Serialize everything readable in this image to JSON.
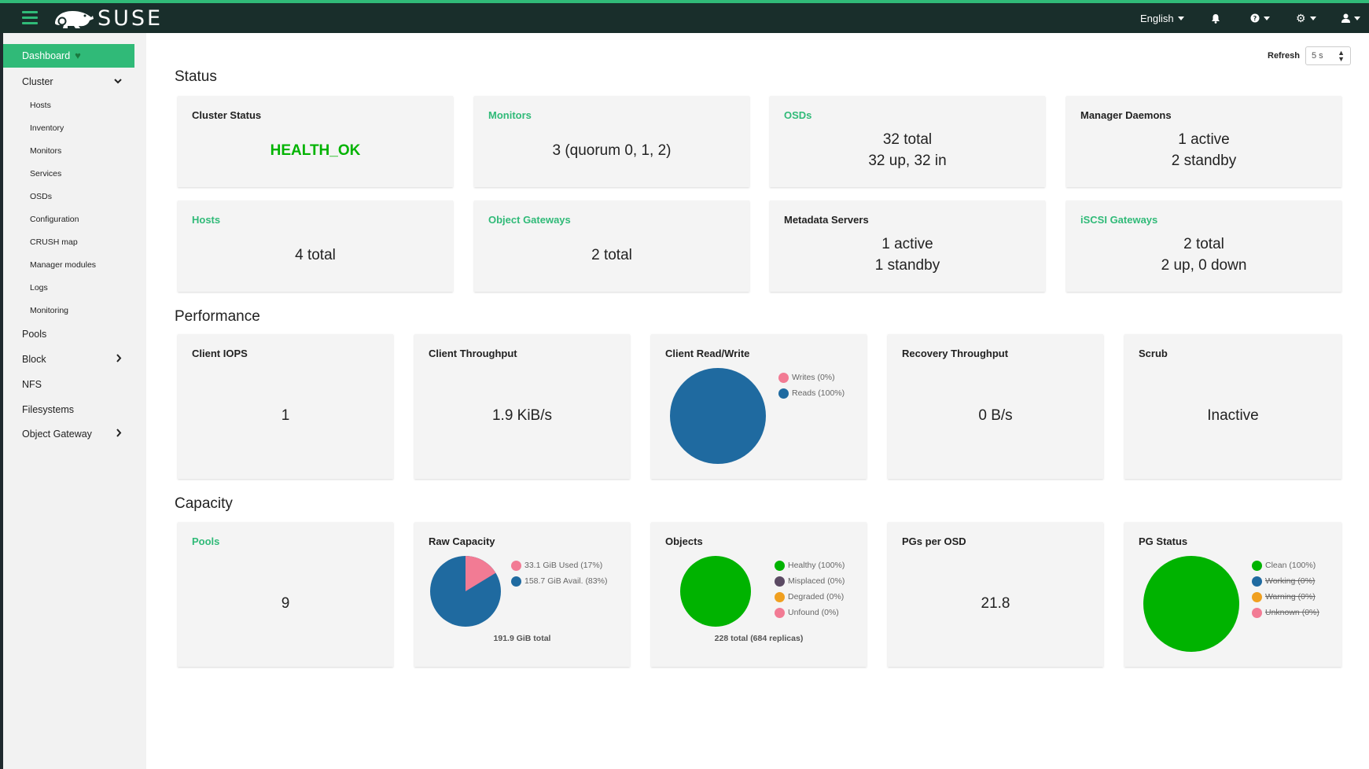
{
  "topbar": {
    "brand": "SUSE",
    "language": "English",
    "icons": [
      "menu-icon",
      "bell-icon",
      "help-icon",
      "gear-icon",
      "user-icon"
    ],
    "accent": "#30ba78",
    "background": "#192e2b"
  },
  "sidebar": {
    "dashboard": "Dashboard",
    "cluster": "Cluster",
    "cluster_items": [
      "Hosts",
      "Inventory",
      "Monitors",
      "Services",
      "OSDs",
      "Configuration",
      "CRUSH map",
      "Manager modules",
      "Logs",
      "Monitoring"
    ],
    "pools": "Pools",
    "block": "Block",
    "nfs": "NFS",
    "filesystems": "Filesystems",
    "object_gateway": "Object Gateway"
  },
  "refresh": {
    "label": "Refresh",
    "value": "5 s"
  },
  "sections": {
    "status": "Status",
    "performance": "Performance",
    "capacity": "Capacity"
  },
  "status": {
    "cluster_status": {
      "title": "Cluster Status",
      "value": "HEALTH_OK"
    },
    "monitors": {
      "title": "Monitors",
      "value": "3 (quorum 0, 1, 2)"
    },
    "osds": {
      "title": "OSDs",
      "line1": "32 total",
      "line2": "32 up, 32 in"
    },
    "manager_daemons": {
      "title": "Manager Daemons",
      "line1": "1 active",
      "line2": "2 standby"
    },
    "hosts": {
      "title": "Hosts",
      "value": "4 total"
    },
    "object_gateways": {
      "title": "Object Gateways",
      "value": "2 total"
    },
    "metadata_servers": {
      "title": "Metadata Servers",
      "line1": "1 active",
      "line2": "1 standby"
    },
    "iscsi_gateways": {
      "title": "iSCSI Gateways",
      "line1": "2 total",
      "line2": "2 up, 0 down"
    }
  },
  "performance": {
    "client_iops": {
      "title": "Client IOPS",
      "value": "1"
    },
    "client_throughput": {
      "title": "Client Throughput",
      "value": "1.9 KiB/s"
    },
    "client_read_write": {
      "title": "Client Read/Write",
      "legend": [
        "Writes (0%)",
        "Reads (100%)"
      ]
    },
    "recovery_throughput": {
      "title": "Recovery Throughput",
      "value": "0 B/s"
    },
    "scrub": {
      "title": "Scrub",
      "value": "Inactive"
    }
  },
  "capacity": {
    "pools": {
      "title": "Pools",
      "value": "9"
    },
    "raw_capacity": {
      "title": "Raw Capacity",
      "legend": [
        "33.1 GiB Used (17%)",
        "158.7 GiB Avail. (83%)"
      ],
      "caption": "191.9 GiB total"
    },
    "objects": {
      "title": "Objects",
      "legend": [
        "Healthy (100%)",
        "Misplaced (0%)",
        "Degraded (0%)",
        "Unfound (0%)"
      ],
      "caption": "228 total (684 replicas)"
    },
    "pgs_per_osd": {
      "title": "PGs per OSD",
      "value": "21.8"
    },
    "pg_status": {
      "title": "PG Status",
      "legend": [
        "Clean (100%)",
        "Working (0%)",
        "Warning (0%)",
        "Unknown (0%)"
      ]
    }
  },
  "colors": {
    "green": "#00b300",
    "blue": "#1f6aa0",
    "pink": "#f27b94",
    "purple": "#5b4a63",
    "orange": "#f0a020",
    "link": "#30ba78"
  }
}
